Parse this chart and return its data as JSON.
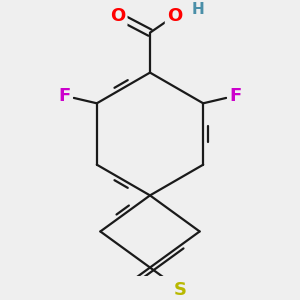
{
  "background_color": "#efefef",
  "bond_color": "#1a1a1a",
  "bond_width": 1.6,
  "atom_colors": {
    "O": "#ff0000",
    "F": "#cc00cc",
    "S": "#b8b800",
    "H": "#4a8fa8",
    "C": "#1a1a1a"
  },
  "font_size_atoms": 12
}
